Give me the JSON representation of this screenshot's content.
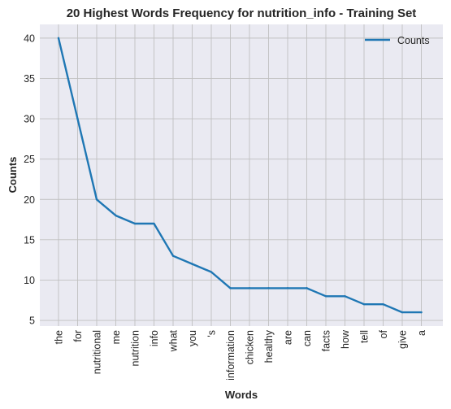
{
  "chart_data": {
    "type": "line",
    "title": "20 Highest Words Frequency for nutrition_info - Training Set",
    "xlabel": "Words",
    "ylabel": "Counts",
    "categories": [
      "the",
      "for",
      "nutritional",
      "me",
      "nutrition",
      "info",
      "what",
      "you",
      "'s",
      "information",
      "chicken",
      "healthy",
      "are",
      "can",
      "facts",
      "how",
      "tell",
      "of",
      "give",
      "a"
    ],
    "series": [
      {
        "name": "Counts",
        "values": [
          40,
          30,
          20,
          18,
          17,
          17,
          13,
          12,
          11,
          9,
          9,
          9,
          9,
          9,
          8,
          8,
          7,
          7,
          6,
          6
        ]
      }
    ],
    "ylim": [
      4.3,
      41.7
    ],
    "yticks": [
      5,
      10,
      15,
      20,
      25,
      30,
      35,
      40
    ],
    "grid": true,
    "legend": "top-right",
    "colors": {
      "line": "#1f77b4",
      "plot_bg": "#eaeaf2",
      "grid": "#c0c0c0",
      "text": "#262626"
    }
  }
}
